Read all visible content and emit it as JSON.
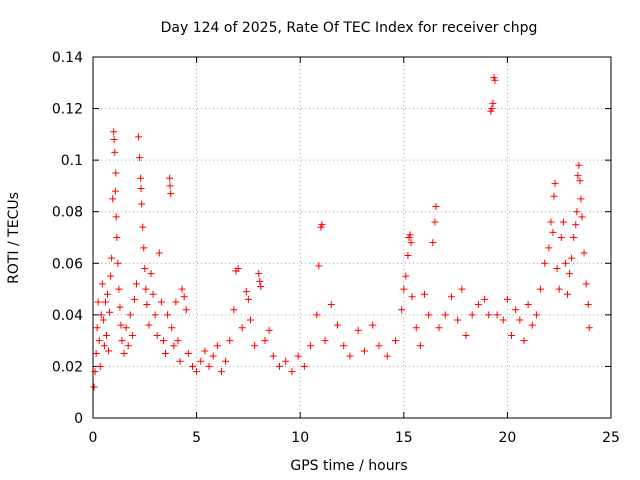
{
  "chart_data": {
    "type": "scatter",
    "title": "Day 124 of 2025, Rate Of TEC Index for receiver chpg",
    "xlabel": "GPS time / hours",
    "ylabel": "ROTI / TECUs",
    "xlim": [
      0,
      25
    ],
    "ylim": [
      0,
      0.14
    ],
    "xticks": [
      0,
      5,
      10,
      15,
      20,
      25
    ],
    "xtick_labels": [
      "0",
      "5",
      "10",
      "15",
      "20",
      "25"
    ],
    "yticks": [
      0,
      0.02,
      0.04,
      0.06,
      0.08,
      0.1,
      0.12,
      0.14
    ],
    "ytick_labels": [
      "0",
      "0.02",
      "0.04",
      "0.06",
      "0.08",
      "0.1",
      "0.12",
      "0.14"
    ],
    "grid": true,
    "marker": "+",
    "color": "#ff0000",
    "series": [
      {
        "name": "ROTI",
        "points": [
          [
            0.05,
            0.012
          ],
          [
            0.1,
            0.018
          ],
          [
            0.15,
            0.025
          ],
          [
            0.2,
            0.035
          ],
          [
            0.25,
            0.045
          ],
          [
            0.3,
            0.03
          ],
          [
            0.35,
            0.02
          ],
          [
            0.4,
            0.04
          ],
          [
            0.45,
            0.052
          ],
          [
            0.5,
            0.038
          ],
          [
            0.55,
            0.028
          ],
          [
            0.6,
            0.045
          ],
          [
            0.65,
            0.032
          ],
          [
            0.7,
            0.048
          ],
          [
            0.75,
            0.026
          ],
          [
            0.8,
            0.041
          ],
          [
            0.85,
            0.055
          ],
          [
            0.9,
            0.062
          ],
          [
            0.95,
            0.085
          ],
          [
            1.0,
            0.111
          ],
          [
            1.02,
            0.108
          ],
          [
            1.05,
            0.103
          ],
          [
            1.1,
            0.095
          ],
          [
            1.08,
            0.088
          ],
          [
            1.12,
            0.078
          ],
          [
            1.15,
            0.07
          ],
          [
            1.2,
            0.06
          ],
          [
            1.25,
            0.05
          ],
          [
            1.3,
            0.043
          ],
          [
            1.35,
            0.036
          ],
          [
            1.4,
            0.03
          ],
          [
            1.5,
            0.025
          ],
          [
            1.6,
            0.035
          ],
          [
            1.7,
            0.028
          ],
          [
            1.8,
            0.04
          ],
          [
            1.9,
            0.032
          ],
          [
            2.0,
            0.046
          ],
          [
            2.1,
            0.052
          ],
          [
            2.2,
            0.109
          ],
          [
            2.25,
            0.101
          ],
          [
            2.3,
            0.093
          ],
          [
            2.32,
            0.089
          ],
          [
            2.35,
            0.083
          ],
          [
            2.4,
            0.074
          ],
          [
            2.45,
            0.066
          ],
          [
            2.5,
            0.058
          ],
          [
            2.55,
            0.05
          ],
          [
            2.6,
            0.044
          ],
          [
            2.7,
            0.036
          ],
          [
            2.8,
            0.056
          ],
          [
            2.9,
            0.048
          ],
          [
            3.0,
            0.04
          ],
          [
            3.1,
            0.032
          ],
          [
            3.2,
            0.064
          ],
          [
            3.3,
            0.045
          ],
          [
            3.4,
            0.03
          ],
          [
            3.5,
            0.025
          ],
          [
            3.6,
            0.04
          ],
          [
            3.7,
            0.093
          ],
          [
            3.72,
            0.09
          ],
          [
            3.75,
            0.087
          ],
          [
            3.8,
            0.035
          ],
          [
            3.9,
            0.028
          ],
          [
            4.0,
            0.045
          ],
          [
            4.1,
            0.03
          ],
          [
            4.2,
            0.022
          ],
          [
            4.3,
            0.05
          ],
          [
            4.4,
            0.047
          ],
          [
            4.5,
            0.042
          ],
          [
            4.6,
            0.025
          ],
          [
            4.8,
            0.02
          ],
          [
            5.0,
            0.018
          ],
          [
            5.2,
            0.022
          ],
          [
            5.4,
            0.026
          ],
          [
            5.6,
            0.02
          ],
          [
            5.8,
            0.024
          ],
          [
            6.0,
            0.028
          ],
          [
            6.2,
            0.018
          ],
          [
            6.4,
            0.022
          ],
          [
            6.6,
            0.03
          ],
          [
            6.8,
            0.042
          ],
          [
            6.9,
            0.057
          ],
          [
            7.0,
            0.058
          ],
          [
            7.2,
            0.035
          ],
          [
            7.4,
            0.049
          ],
          [
            7.5,
            0.046
          ],
          [
            7.6,
            0.038
          ],
          [
            7.8,
            0.028
          ],
          [
            8.0,
            0.056
          ],
          [
            8.05,
            0.053
          ],
          [
            8.1,
            0.051
          ],
          [
            8.3,
            0.03
          ],
          [
            8.5,
            0.034
          ],
          [
            8.7,
            0.024
          ],
          [
            9.0,
            0.02
          ],
          [
            9.3,
            0.022
          ],
          [
            9.6,
            0.018
          ],
          [
            9.9,
            0.024
          ],
          [
            10.2,
            0.02
          ],
          [
            10.5,
            0.028
          ],
          [
            10.8,
            0.04
          ],
          [
            10.9,
            0.059
          ],
          [
            11.0,
            0.074
          ],
          [
            11.05,
            0.075
          ],
          [
            11.2,
            0.03
          ],
          [
            11.5,
            0.044
          ],
          [
            11.8,
            0.036
          ],
          [
            12.1,
            0.028
          ],
          [
            12.4,
            0.024
          ],
          [
            12.8,
            0.034
          ],
          [
            13.1,
            0.026
          ],
          [
            13.5,
            0.036
          ],
          [
            13.8,
            0.028
          ],
          [
            14.2,
            0.024
          ],
          [
            14.6,
            0.03
          ],
          [
            14.9,
            0.042
          ],
          [
            15.0,
            0.05
          ],
          [
            15.1,
            0.055
          ],
          [
            15.2,
            0.063
          ],
          [
            15.25,
            0.07
          ],
          [
            15.3,
            0.071
          ],
          [
            15.35,
            0.068
          ],
          [
            15.4,
            0.047
          ],
          [
            15.6,
            0.035
          ],
          [
            15.8,
            0.028
          ],
          [
            16.0,
            0.048
          ],
          [
            16.2,
            0.04
          ],
          [
            16.4,
            0.068
          ],
          [
            16.5,
            0.076
          ],
          [
            16.55,
            0.082
          ],
          [
            16.7,
            0.035
          ],
          [
            17.0,
            0.04
          ],
          [
            17.3,
            0.047
          ],
          [
            17.6,
            0.038
          ],
          [
            17.8,
            0.05
          ],
          [
            18.0,
            0.032
          ],
          [
            18.3,
            0.04
          ],
          [
            18.6,
            0.044
          ],
          [
            18.9,
            0.046
          ],
          [
            19.1,
            0.04
          ],
          [
            19.2,
            0.119
          ],
          [
            19.25,
            0.12
          ],
          [
            19.3,
            0.122
          ],
          [
            19.35,
            0.132
          ],
          [
            19.4,
            0.131
          ],
          [
            19.5,
            0.04
          ],
          [
            19.8,
            0.038
          ],
          [
            20.0,
            0.046
          ],
          [
            20.2,
            0.032
          ],
          [
            20.4,
            0.042
          ],
          [
            20.6,
            0.038
          ],
          [
            20.8,
            0.03
          ],
          [
            21.0,
            0.044
          ],
          [
            21.2,
            0.036
          ],
          [
            21.4,
            0.04
          ],
          [
            21.6,
            0.05
          ],
          [
            21.8,
            0.06
          ],
          [
            22.0,
            0.066
          ],
          [
            22.1,
            0.076
          ],
          [
            22.2,
            0.072
          ],
          [
            22.25,
            0.086
          ],
          [
            22.3,
            0.091
          ],
          [
            22.4,
            0.058
          ],
          [
            22.5,
            0.05
          ],
          [
            22.6,
            0.07
          ],
          [
            22.7,
            0.076
          ],
          [
            22.8,
            0.06
          ],
          [
            22.9,
            0.048
          ],
          [
            23.0,
            0.056
          ],
          [
            23.1,
            0.062
          ],
          [
            23.2,
            0.07
          ],
          [
            23.3,
            0.075
          ],
          [
            23.35,
            0.08
          ],
          [
            23.4,
            0.094
          ],
          [
            23.45,
            0.098
          ],
          [
            23.5,
            0.092
          ],
          [
            23.55,
            0.085
          ],
          [
            23.6,
            0.078
          ],
          [
            23.7,
            0.064
          ],
          [
            23.8,
            0.052
          ],
          [
            23.9,
            0.044
          ],
          [
            23.95,
            0.035
          ]
        ]
      }
    ]
  }
}
